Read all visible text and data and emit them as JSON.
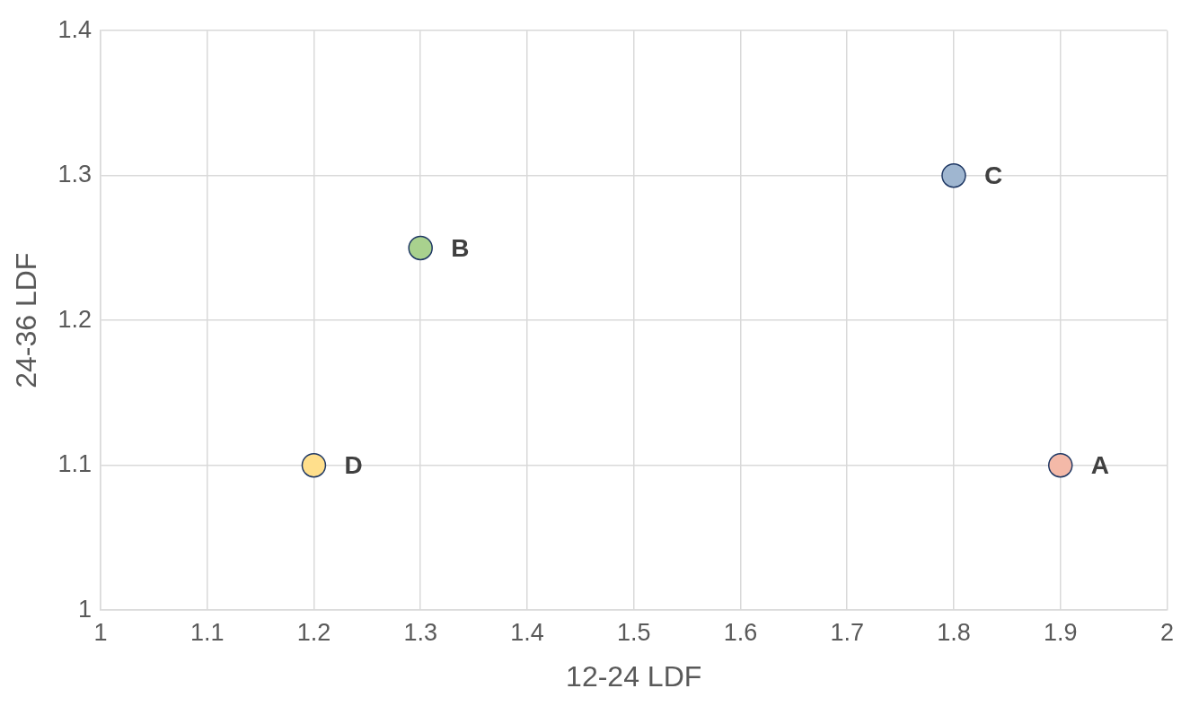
{
  "chart_data": {
    "type": "scatter",
    "xlabel": "12-24 LDF",
    "ylabel": "24-36 LDF",
    "series": [
      {
        "name": "A",
        "color": "#f4b9a8",
        "x": [
          1.9
        ],
        "values": [
          1.1
        ]
      },
      {
        "name": "B",
        "color": "#a9d18e",
        "x": [
          1.3
        ],
        "values": [
          1.25
        ]
      },
      {
        "name": "C",
        "color": "#9fb6d0",
        "x": [
          1.8
        ],
        "values": [
          1.3
        ]
      },
      {
        "name": "D",
        "color": "#ffdf8c",
        "x": [
          1.2
        ],
        "values": [
          1.1
        ]
      }
    ],
    "xlim": [
      1,
      2
    ],
    "xticks": [
      1,
      1.1,
      1.2,
      1.3,
      1.4,
      1.5,
      1.6,
      1.7,
      1.8,
      1.9,
      2
    ],
    "ylim": [
      1,
      1.4
    ],
    "yticks": [
      1,
      1.1,
      1.2,
      1.3,
      1.4
    ],
    "grid": true,
    "legend": false,
    "marker": "circle"
  }
}
